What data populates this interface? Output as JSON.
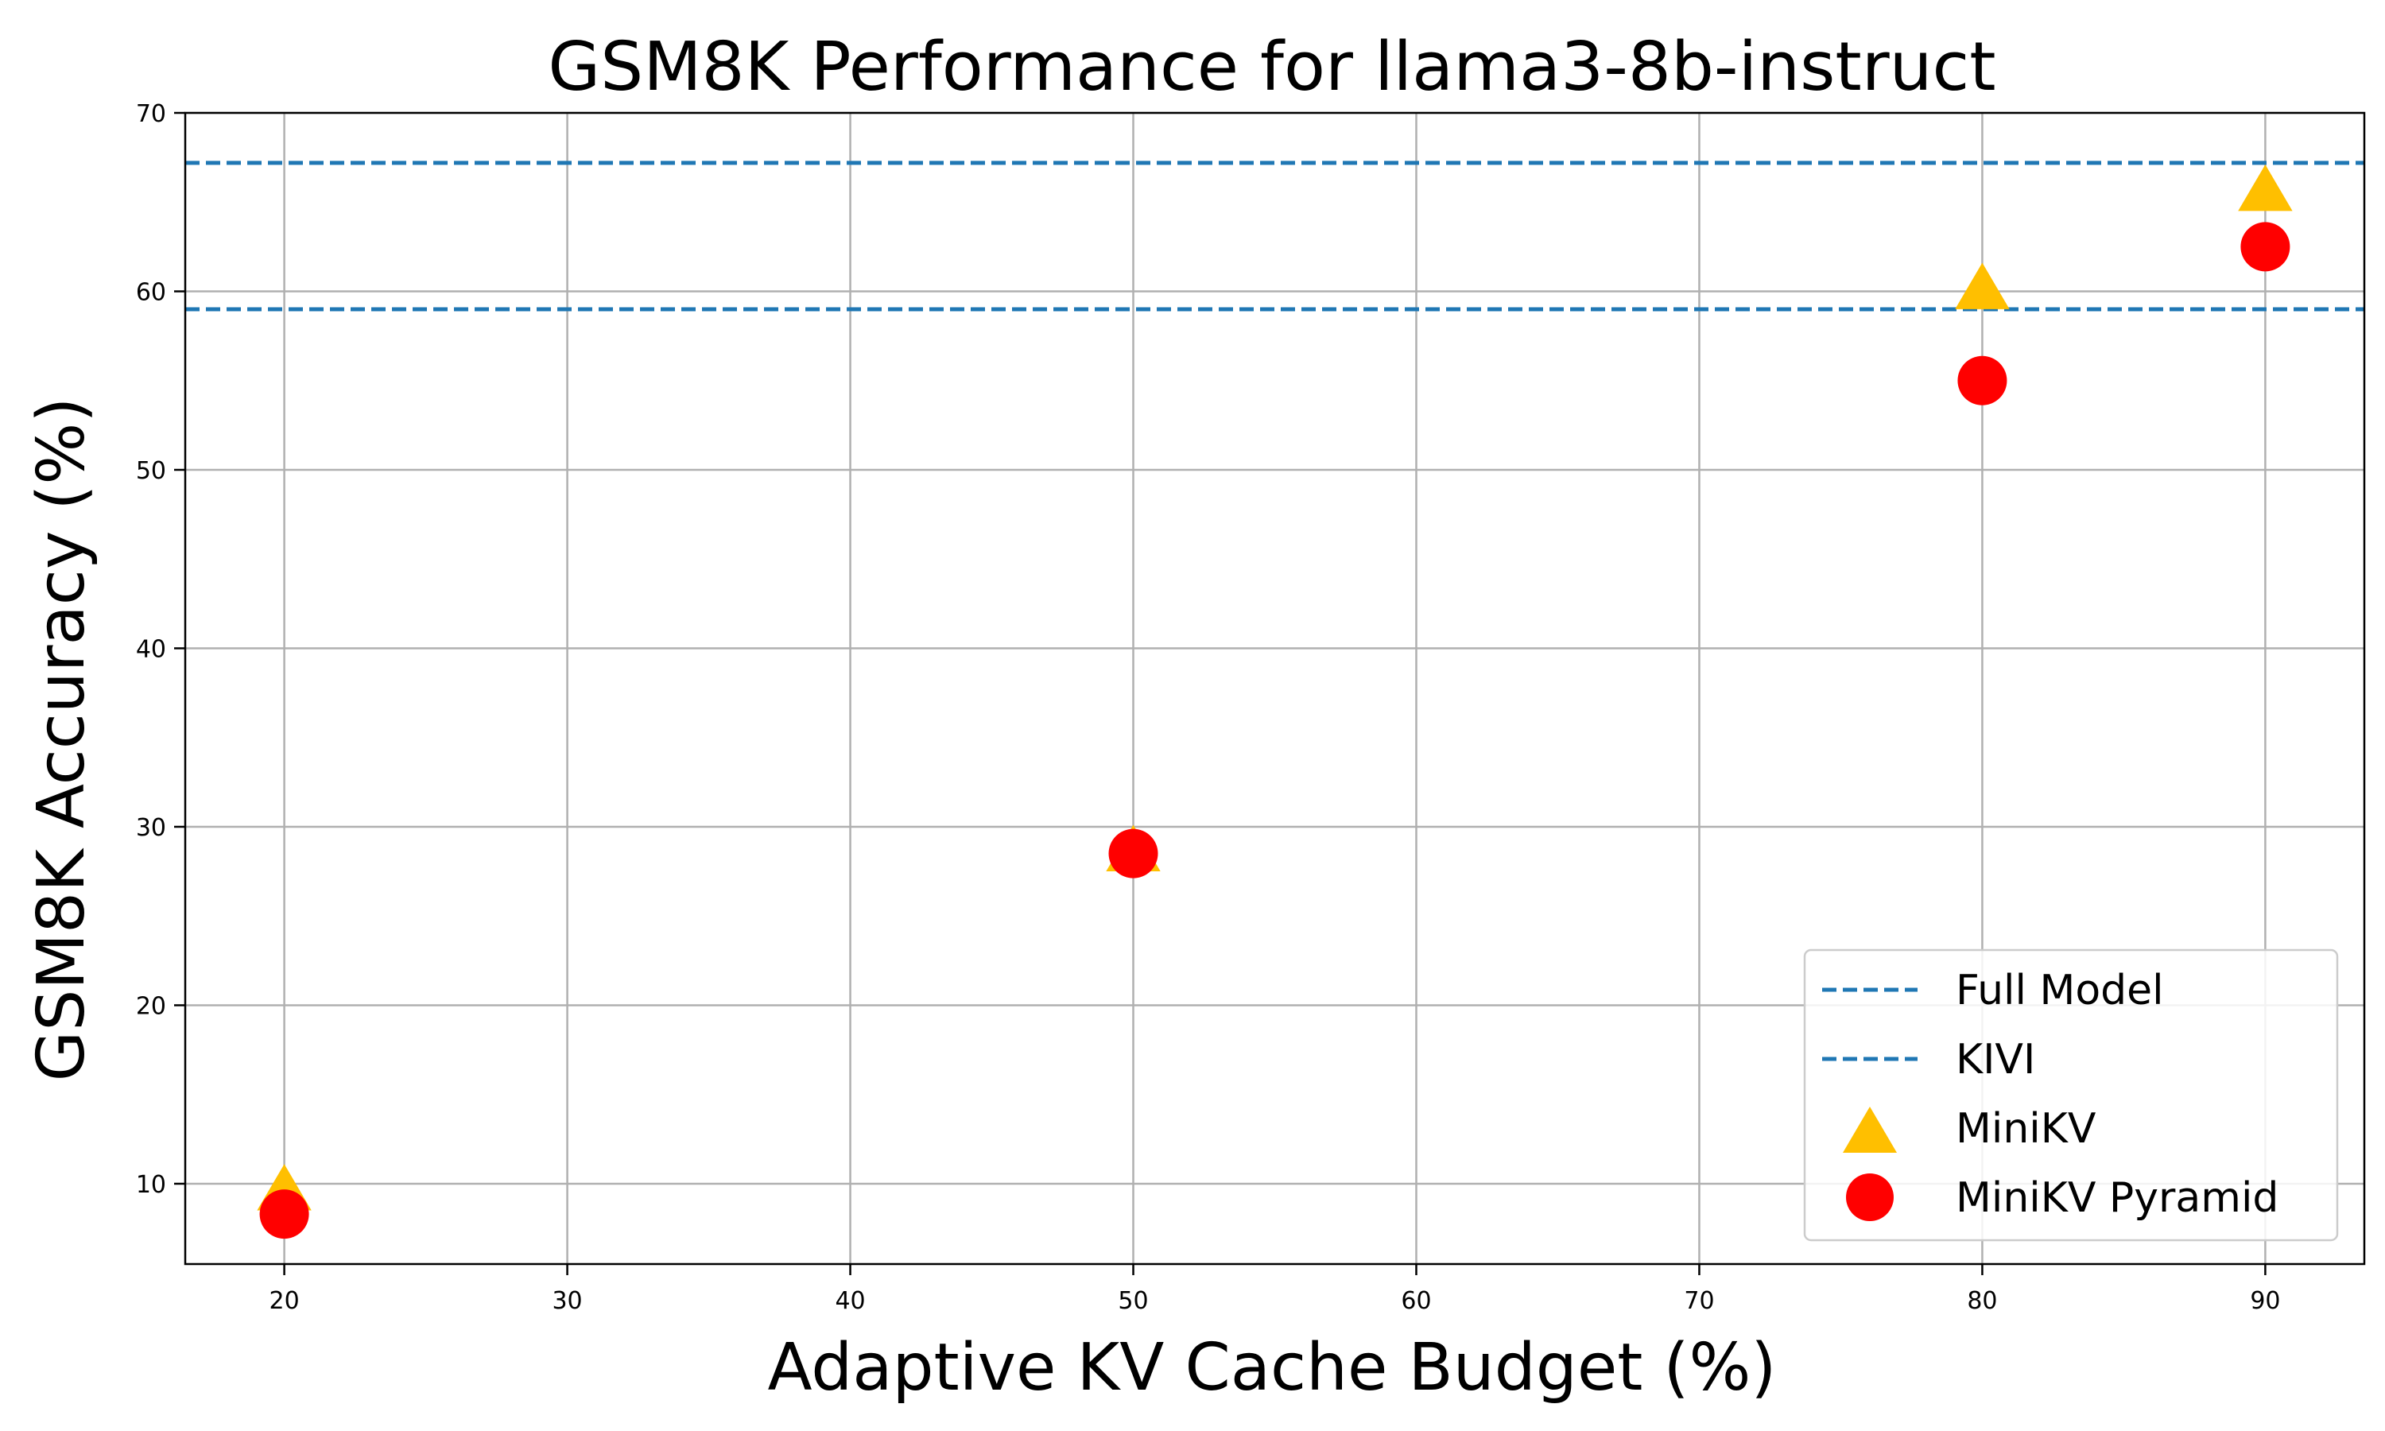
{
  "chart_data": {
    "type": "scatter",
    "title": "GSM8K Performance for llama3-8b-instruct",
    "xlabel": "Adaptive KV Cache Budget (%)",
    "ylabel": "GSM8K Accuracy (%)",
    "xlim": [
      16.5,
      93.5
    ],
    "ylim": [
      5.5,
      70
    ],
    "xticks": [
      20,
      30,
      40,
      50,
      60,
      70,
      80,
      90
    ],
    "yticks": [
      10,
      20,
      30,
      40,
      50,
      60,
      70
    ],
    "xtick_labels": [
      "20",
      "30",
      "40",
      "50",
      "60",
      "70",
      "80",
      "90"
    ],
    "ytick_labels": [
      "10",
      "20",
      "30",
      "40",
      "50",
      "60",
      "70"
    ],
    "grid": true,
    "legend_position": "lower-right",
    "hlines": [
      {
        "name": "Full Model",
        "y": 67.2,
        "color": "#1f77b4",
        "style": "dashed"
      },
      {
        "name": "KIVI",
        "y": 59.0,
        "color": "#1f77b4",
        "style": "dashed"
      }
    ],
    "series": [
      {
        "name": "MiniKV",
        "marker": "triangle",
        "color": "#ffbf00",
        "x": [
          20,
          50,
          80,
          90
        ],
        "y": [
          9.5,
          28.5,
          60.0,
          65.5
        ]
      },
      {
        "name": "MiniKV Pyramid",
        "marker": "circle",
        "color": "#ff0000",
        "x": [
          20,
          50,
          80,
          90
        ],
        "y": [
          8.3,
          28.5,
          55.0,
          62.5
        ]
      }
    ]
  }
}
